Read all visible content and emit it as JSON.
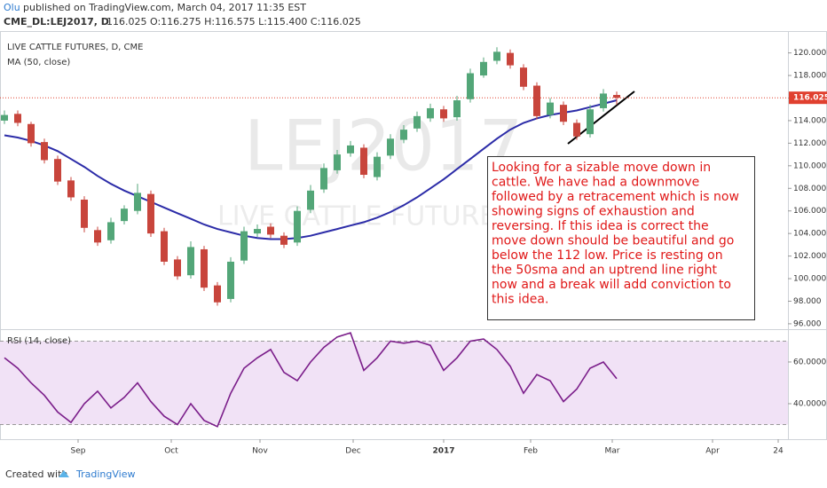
{
  "header": {
    "author": "Olu",
    "published": "published on TradingView.com, March 04, 2017 11:35 EST",
    "symbol": "CME_DL:LEJ2017, D",
    "quote": "116.025 O:116.275 H:116.575 L:115.400 C:116.025"
  },
  "watermark": {
    "symbol": "LEJ2017",
    "name": "LIVE CATTLE FUTURES"
  },
  "annotation": [
    "Looking for a sizable move down in",
    "cattle. We have had a downmove",
    "followed by a retracement which is now",
    "showing signs of exhaustion and",
    "reversing. If this idea is correct the",
    "move down should be beautiful and go",
    "below the 112 low. Price is resting on",
    "the 50sma  and an uptrend line right",
    "now and a break will add conviction to",
    "this idea."
  ],
  "footer": {
    "created": "Created with",
    "brand": "TradingView"
  },
  "chart_data": [
    {
      "type": "candlestick",
      "title": "LIVE CATTLE FUTURES, D, CME",
      "up_color": "#53a678",
      "down_color": "#c8453c",
      "x": [
        0,
        3,
        6,
        9,
        12,
        15,
        18,
        21,
        24,
        27,
        30,
        33,
        36,
        39,
        42,
        45,
        48,
        51,
        54,
        57,
        60,
        63,
        66,
        69,
        72,
        75,
        78,
        81,
        84,
        87,
        90,
        93,
        96,
        99,
        102,
        105,
        108,
        111,
        114,
        117,
        120,
        123,
        126,
        129,
        132,
        135,
        138
      ],
      "open": [
        114.0,
        114.6,
        113.7,
        112.1,
        110.6,
        108.7,
        107.0,
        104.3,
        103.4,
        105.1,
        106.0,
        107.5,
        104.2,
        101.7,
        100.3,
        102.6,
        99.4,
        98.2,
        101.6,
        104.0,
        104.6,
        103.8,
        103.2,
        106.1,
        107.9,
        109.6,
        111.1,
        111.6,
        109.0,
        110.9,
        112.3,
        113.3,
        114.2,
        115.0,
        114.3,
        115.9,
        118.0,
        119.3,
        120.0,
        118.7,
        117.1,
        114.5,
        115.4,
        113.8,
        112.8,
        115.1,
        116.275
      ],
      "high": [
        114.9,
        114.9,
        113.9,
        112.4,
        110.9,
        109.0,
        107.3,
        104.6,
        105.4,
        106.5,
        108.4,
        107.8,
        104.5,
        102.0,
        103.3,
        102.9,
        99.7,
        101.9,
        104.6,
        104.8,
        104.9,
        104.1,
        106.4,
        108.3,
        110.2,
        111.4,
        112.2,
        111.9,
        111.2,
        112.8,
        113.6,
        114.8,
        115.5,
        115.3,
        116.2,
        118.6,
        119.6,
        120.5,
        120.3,
        119.0,
        117.4,
        116.0,
        115.7,
        114.1,
        115.4,
        116.8,
        116.575
      ],
      "low": [
        113.7,
        113.5,
        111.7,
        110.2,
        108.3,
        106.9,
        104.1,
        102.9,
        103.1,
        104.8,
        105.7,
        103.7,
        101.2,
        99.9,
        100.0,
        98.9,
        97.6,
        97.9,
        101.3,
        103.7,
        103.6,
        102.7,
        102.9,
        105.8,
        107.6,
        109.3,
        110.8,
        108.9,
        108.7,
        110.6,
        112.0,
        113.0,
        113.9,
        113.9,
        114.0,
        115.6,
        117.8,
        119.0,
        118.6,
        116.7,
        114.1,
        114.2,
        113.6,
        112.3,
        112.5,
        114.8,
        115.4
      ],
      "close": [
        114.5,
        113.8,
        112.0,
        110.5,
        108.6,
        107.2,
        104.5,
        103.2,
        105.0,
        106.2,
        107.6,
        104.0,
        101.5,
        100.2,
        102.8,
        99.2,
        97.9,
        101.5,
        104.2,
        104.4,
        103.9,
        103.0,
        106.0,
        107.8,
        109.8,
        111.0,
        111.8,
        109.2,
        110.8,
        112.4,
        113.2,
        114.4,
        115.1,
        114.2,
        115.8,
        118.2,
        119.2,
        120.1,
        118.9,
        117.0,
        114.4,
        115.6,
        113.9,
        112.6,
        115.0,
        116.4,
        116.025
      ],
      "lines": [
        {
          "name": "MA (50, close)",
          "color": "#2c2ca8",
          "values": [
            112.7,
            112.5,
            112.2,
            111.8,
            111.3,
            110.6,
            109.9,
            109.1,
            108.4,
            107.8,
            107.3,
            106.8,
            106.3,
            105.8,
            105.3,
            104.8,
            104.4,
            104.1,
            103.8,
            103.6,
            103.5,
            103.5,
            103.6,
            103.8,
            104.1,
            104.4,
            104.7,
            105.0,
            105.4,
            105.9,
            106.5,
            107.2,
            108.0,
            108.8,
            109.7,
            110.6,
            111.5,
            112.4,
            113.2,
            113.8,
            114.2,
            114.5,
            114.7,
            114.9,
            115.2,
            115.5,
            115.8
          ]
        }
      ],
      "last_price": {
        "value": 116.025,
        "label": "116.025"
      },
      "last_color": "#e0402f",
      "xlim": [
        -1,
        176.6
      ],
      "ylim": [
        95.6,
        121.7
      ],
      "yticks": [
        {
          "value": 96,
          "label": "96.000"
        },
        {
          "value": 98,
          "label": "98.000"
        },
        {
          "value": 100,
          "label": "100.000"
        },
        {
          "value": 102,
          "label": "102.000"
        },
        {
          "value": 104,
          "label": "104.000"
        },
        {
          "value": 106,
          "label": "106.000"
        },
        {
          "value": 108,
          "label": "108.000"
        },
        {
          "value": 110,
          "label": "110.000"
        },
        {
          "value": 112,
          "label": "112.000"
        },
        {
          "value": 114,
          "label": "114.000"
        },
        {
          "value": 116,
          "label": "116.000"
        },
        {
          "value": 118,
          "label": "118.000"
        },
        {
          "value": 120,
          "label": "120.000"
        }
      ]
    },
    {
      "type": "line",
      "title": "RSI (14, close)",
      "band": [
        30,
        70
      ],
      "band_color": "#f1e2f6",
      "x": [
        0,
        3,
        6,
        9,
        12,
        15,
        18,
        21,
        24,
        27,
        30,
        33,
        36,
        39,
        42,
        45,
        48,
        51,
        54,
        57,
        60,
        63,
        66,
        69,
        72,
        75,
        78,
        81,
        84,
        87,
        90,
        93,
        96,
        99,
        102,
        105,
        108,
        111,
        114,
        117,
        120,
        123,
        126,
        129,
        132,
        135,
        138
      ],
      "series": [
        {
          "name": "RSI (14, close)",
          "color": "#7b1e8a",
          "values": [
            62,
            57,
            50,
            44,
            36,
            31,
            40,
            46,
            38,
            43,
            50,
            41,
            34,
            30,
            40,
            32,
            29,
            45,
            57,
            62,
            66,
            55,
            51,
            60,
            67,
            72,
            74,
            56,
            62,
            70,
            69,
            70,
            68,
            56,
            62,
            70,
            71,
            66,
            58,
            45,
            54,
            51,
            41,
            47,
            57,
            60,
            52
          ]
        }
      ],
      "xlim": [
        -1,
        176.6
      ],
      "ylim": [
        25.1,
        75.3
      ],
      "yticks": [
        {
          "value": 40,
          "label": "40.0000"
        },
        {
          "value": 60,
          "label": "60.0000"
        }
      ],
      "xticks": [
        {
          "value": 16.6,
          "label": "Sep"
        },
        {
          "value": 37.6,
          "label": "Oct"
        },
        {
          "value": 57.6,
          "label": "Nov"
        },
        {
          "value": 78.6,
          "label": "Dec"
        },
        {
          "value": 99,
          "label": "2017"
        },
        {
          "value": 118.6,
          "label": "Feb"
        },
        {
          "value": 137,
          "label": "Mar"
        },
        {
          "value": 159.6,
          "label": "Apr"
        },
        {
          "value": 174.4,
          "label": "24"
        }
      ]
    }
  ]
}
